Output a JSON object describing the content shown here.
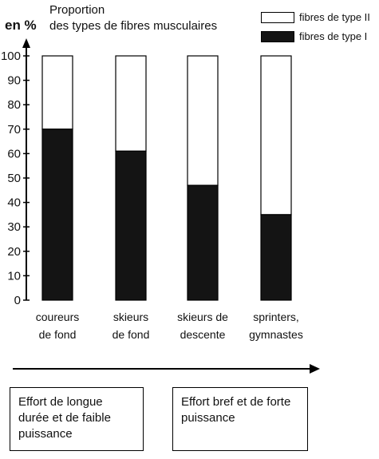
{
  "chart_data": {
    "type": "bar",
    "stacked": true,
    "title": "Proportion",
    "subtitle": "des types de fibres musculaires",
    "ylabel": "en %",
    "xlabel": "",
    "ylim": [
      0,
      100
    ],
    "yticks": [
      0,
      10,
      20,
      30,
      40,
      50,
      60,
      70,
      80,
      90,
      100
    ],
    "grid": false,
    "legend_position": "top-right",
    "categories": [
      [
        "coureurs",
        "de fond"
      ],
      [
        "skieurs",
        "de fond"
      ],
      [
        "skieurs de",
        "descente"
      ],
      [
        "sprinters,",
        "gymnastes"
      ]
    ],
    "series": [
      {
        "name": "fibres de type I",
        "values": [
          70,
          61,
          47,
          35
        ],
        "color": "#141414"
      },
      {
        "name": "fibres de type II",
        "values": [
          30,
          39,
          53,
          65
        ],
        "color": "#ffffff"
      }
    ],
    "captions": [
      "Effort de longue durée et de faible puissance",
      "Effort bref et de forte puissance"
    ]
  }
}
